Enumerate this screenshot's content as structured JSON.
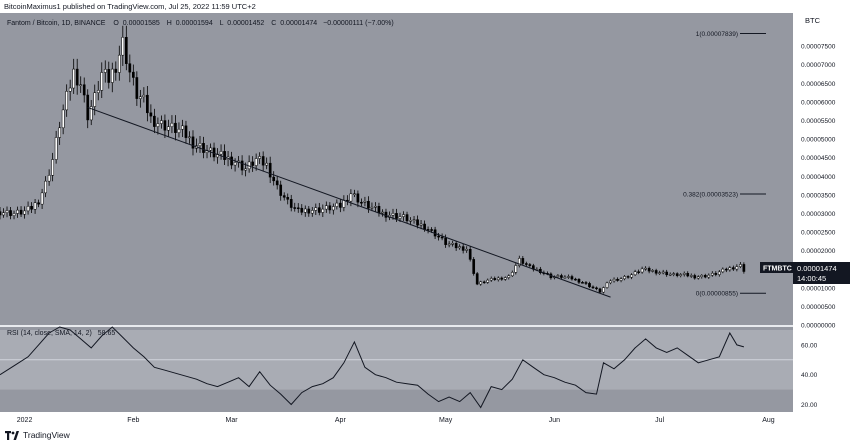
{
  "header": {
    "publish_line": "BitcoinMaximus1 published on TradingView.com, Jul 25, 2022 11:59 UTC+2"
  },
  "legend": {
    "title": "Fantom / Bitcoin, 1D, BINANCE",
    "o_label": "O",
    "o_value": "0.00001585",
    "h_label": "H",
    "h_value": "0.00001594",
    "l_label": "L",
    "l_value": "0.00001452",
    "c_label": "C",
    "c_value": "0.00001474",
    "change": "−0.00000111 (−7.00%)"
  },
  "footer": {
    "brand": "TradingView"
  },
  "colors": {
    "pane": "#9598a1",
    "rsi_band": "#a9acb4",
    "axis_bg": "#ffffff",
    "candle_up": "#ffffff",
    "candle_down": "#000000",
    "text": "#131722"
  },
  "chart_data": [
    {
      "type": "candlestick",
      "title": "Fantom / Bitcoin, 1D, BINANCE",
      "currency_label": "BTC",
      "x_tick_labels": [
        "2022",
        "Feb",
        "Mar",
        "Apr",
        "May",
        "Jun",
        "Jul",
        "Aug"
      ],
      "y_tick_labels": [
        "0.00007500",
        "0.00007000",
        "0.00006500",
        "0.00006000",
        "0.00005500",
        "0.00005000",
        "0.00004500",
        "0.00004000",
        "0.00003500",
        "0.00003000",
        "0.00002500",
        "0.00002000",
        "0.00001500",
        "0.00001000",
        "0.00000500",
        "0.00000000"
      ],
      "y_ticks": [
        7.5e-05,
        7e-05,
        6.5e-05,
        6e-05,
        5.5e-05,
        5e-05,
        4.5e-05,
        4e-05,
        3.5e-05,
        3e-05,
        2.5e-05,
        2e-05,
        1.5e-05,
        1e-05,
        5e-06,
        0
      ],
      "ylim": [
        0,
        8.39e-05
      ],
      "xlim": [
        "2021-12-25",
        "2022-08-08"
      ],
      "symbol_label": "FTMBTC",
      "last_price": "0.00001474",
      "countdown": "14:00:45",
      "close_path": [
        [
          "2021-12-25",
          3.05e-05
        ],
        [
          "2021-12-29",
          3e-05
        ],
        [
          "2022-01-01",
          3.05e-05
        ],
        [
          "2022-01-03",
          3.15e-05
        ],
        [
          "2022-01-05",
          3.35e-05
        ],
        [
          "2022-01-07",
          3.8e-05
        ],
        [
          "2022-01-09",
          4.45e-05
        ],
        [
          "2022-01-11",
          5.4e-05
        ],
        [
          "2022-01-13",
          6.1e-05
        ],
        [
          "2022-01-15",
          6.8e-05
        ],
        [
          "2022-01-17",
          6.5e-05
        ],
        [
          "2022-01-19",
          5.65e-05
        ],
        [
          "2022-01-21",
          6.1e-05
        ],
        [
          "2022-01-23",
          6.75e-05
        ],
        [
          "2022-01-25",
          6.6e-05
        ],
        [
          "2022-01-27",
          7e-05
        ],
        [
          "2022-01-29",
          7.6e-05
        ],
        [
          "2022-01-31",
          6.8e-05
        ],
        [
          "2022-02-02",
          6.2e-05
        ],
        [
          "2022-02-04",
          6e-05
        ],
        [
          "2022-02-06",
          5.55e-05
        ],
        [
          "2022-02-09",
          5.4e-05
        ],
        [
          "2022-02-12",
          5.3e-05
        ],
        [
          "2022-02-15",
          5.2e-05
        ],
        [
          "2022-02-18",
          4.9e-05
        ],
        [
          "2022-02-21",
          4.75e-05
        ],
        [
          "2022-02-24",
          4.6e-05
        ],
        [
          "2022-02-27",
          4.5e-05
        ],
        [
          "2022-03-02",
          4.4e-05
        ],
        [
          "2022-03-05",
          4.2e-05
        ],
        [
          "2022-03-08",
          4.45e-05
        ],
        [
          "2022-03-11",
          4.3e-05
        ],
        [
          "2022-03-14",
          3.7e-05
        ],
        [
          "2022-03-17",
          3.3e-05
        ],
        [
          "2022-03-20",
          3.05e-05
        ],
        [
          "2022-03-23",
          3.1e-05
        ],
        [
          "2022-03-26",
          3.1e-05
        ],
        [
          "2022-03-29",
          3.15e-05
        ],
        [
          "2022-04-01",
          3.2e-05
        ],
        [
          "2022-04-04",
          3.55e-05
        ],
        [
          "2022-04-07",
          3.3e-05
        ],
        [
          "2022-04-10",
          3.15e-05
        ],
        [
          "2022-04-13",
          3e-05
        ],
        [
          "2022-04-16",
          2.95e-05
        ],
        [
          "2022-04-19",
          2.9e-05
        ],
        [
          "2022-04-22",
          2.75e-05
        ],
        [
          "2022-04-25",
          2.65e-05
        ],
        [
          "2022-04-28",
          2.45e-05
        ],
        [
          "2022-05-01",
          2.2e-05
        ],
        [
          "2022-05-04",
          2.1e-05
        ],
        [
          "2022-05-07",
          2.05e-05
        ],
        [
          "2022-05-10",
          1.1e-05
        ],
        [
          "2022-05-13",
          1.2e-05
        ],
        [
          "2022-05-16",
          1.25e-05
        ],
        [
          "2022-05-19",
          1.3e-05
        ],
        [
          "2022-05-22",
          1.75e-05
        ],
        [
          "2022-05-25",
          1.55e-05
        ],
        [
          "2022-05-28",
          1.45e-05
        ],
        [
          "2022-05-31",
          1.3e-05
        ],
        [
          "2022-06-03",
          1.3e-05
        ],
        [
          "2022-06-06",
          1.25e-05
        ],
        [
          "2022-06-09",
          1.15e-05
        ],
        [
          "2022-06-12",
          1e-05
        ],
        [
          "2022-06-14",
          9e-06
        ],
        [
          "2022-06-17",
          1.2e-05
        ],
        [
          "2022-06-20",
          1.25e-05
        ],
        [
          "2022-06-23",
          1.35e-05
        ],
        [
          "2022-06-26",
          1.5e-05
        ],
        [
          "2022-06-29",
          1.45e-05
        ],
        [
          "2022-07-02",
          1.4e-05
        ],
        [
          "2022-07-05",
          1.35e-05
        ],
        [
          "2022-07-08",
          1.35e-05
        ],
        [
          "2022-07-11",
          1.3e-05
        ],
        [
          "2022-07-14",
          1.32e-05
        ],
        [
          "2022-07-17",
          1.38e-05
        ],
        [
          "2022-07-20",
          1.5e-05
        ],
        [
          "2022-07-22",
          1.55e-05
        ],
        [
          "2022-07-23",
          1.58e-05
        ],
        [
          "2022-07-24",
          1.6e-05
        ],
        [
          "2022-07-25",
          1.474e-05
        ]
      ],
      "trendline": [
        [
          "2022-01-19",
          5.85e-05
        ],
        [
          "2022-06-17",
          7.5e-06
        ]
      ],
      "fib_levels": [
        {
          "ratio": "1",
          "label": "1(0.00007839)",
          "value": 7.839e-05
        },
        {
          "ratio": "0.382",
          "label": "0.382(0.00003523)",
          "value": 3.523e-05
        },
        {
          "ratio": "0",
          "label": "0(0.00000855)",
          "value": 8.55e-06
        }
      ]
    },
    {
      "type": "line",
      "title": "RSI",
      "legend_label": "RSI (14, close, SMA, 14, 2)",
      "legend_value": "58.65",
      "y_tick_labels": [
        "60.00",
        "40.00",
        "20.00"
      ],
      "y_ticks": [
        60,
        40,
        20
      ],
      "ylim": [
        15,
        72
      ],
      "band": [
        30,
        70
      ],
      "midline": 50,
      "x": [
        "2021-12-25",
        "2021-12-29",
        "2022-01-02",
        "2022-01-05",
        "2022-01-08",
        "2022-01-11",
        "2022-01-14",
        "2022-01-17",
        "2022-01-20",
        "2022-01-23",
        "2022-01-26",
        "2022-01-29",
        "2022-02-01",
        "2022-02-04",
        "2022-02-07",
        "2022-02-10",
        "2022-02-13",
        "2022-02-16",
        "2022-02-19",
        "2022-02-22",
        "2022-02-25",
        "2022-02-28",
        "2022-03-03",
        "2022-03-06",
        "2022-03-09",
        "2022-03-12",
        "2022-03-15",
        "2022-03-18",
        "2022-03-21",
        "2022-03-24",
        "2022-03-27",
        "2022-03-30",
        "2022-04-02",
        "2022-04-05",
        "2022-04-08",
        "2022-04-11",
        "2022-04-14",
        "2022-04-17",
        "2022-04-20",
        "2022-04-23",
        "2022-04-26",
        "2022-04-29",
        "2022-05-02",
        "2022-05-05",
        "2022-05-08",
        "2022-05-11",
        "2022-05-14",
        "2022-05-17",
        "2022-05-20",
        "2022-05-23",
        "2022-05-26",
        "2022-05-29",
        "2022-06-01",
        "2022-06-04",
        "2022-06-07",
        "2022-06-10",
        "2022-06-13",
        "2022-06-15",
        "2022-06-18",
        "2022-06-21",
        "2022-06-24",
        "2022-06-27",
        "2022-06-30",
        "2022-07-03",
        "2022-07-06",
        "2022-07-09",
        "2022-07-12",
        "2022-07-15",
        "2022-07-18",
        "2022-07-21",
        "2022-07-23",
        "2022-07-25"
      ],
      "values": [
        40,
        46,
        52,
        60,
        68,
        72,
        70,
        64,
        58,
        66,
        72,
        65,
        58,
        52,
        45,
        43,
        41,
        39,
        37,
        34,
        32,
        35,
        38,
        32,
        42,
        33,
        27,
        20,
        28,
        32,
        34,
        38,
        48,
        62,
        45,
        40,
        38,
        35,
        34,
        33,
        27,
        22,
        25,
        22,
        28,
        18,
        32,
        30,
        37,
        50,
        45,
        40,
        38,
        35,
        33,
        28,
        27,
        48,
        44,
        50,
        58,
        64,
        58,
        55,
        58,
        53,
        48,
        50,
        52,
        68,
        60,
        58.65
      ]
    }
  ]
}
